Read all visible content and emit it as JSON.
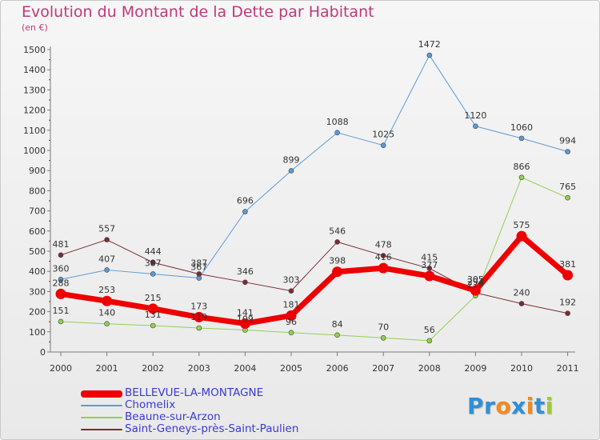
{
  "header": {
    "title": "Evolution du Montant de la Dette par Habitant",
    "subtitle": "(en €)"
  },
  "logo": {
    "letters": [
      "P",
      "r",
      "o",
      "x",
      "i",
      "t",
      "i"
    ],
    "colors": [
      "#2f8fd8",
      "#2f8fd8",
      "#f08a1c",
      "#2f8fd8",
      "#f08a1c",
      "#2f8fd8",
      "#9acd32"
    ]
  },
  "chart_data": {
    "type": "line",
    "title": "Evolution du Montant de la Dette par Habitant",
    "subtitle": "(en €)",
    "categories": [
      "2000",
      "2001",
      "2002",
      "2003",
      "2004",
      "2005",
      "2006",
      "2007",
      "2008",
      "2009",
      "2010",
      "2011"
    ],
    "ylim": [
      0,
      1500
    ],
    "yticks": [
      0,
      100,
      200,
      300,
      400,
      500,
      600,
      700,
      800,
      900,
      1000,
      1100,
      1200,
      1300,
      1400,
      1500
    ],
    "grid": false,
    "legend_position": "bottom-left",
    "series": [
      {
        "name": "BELLEVUE-LA-MONTAGNE",
        "color": "#ee0000",
        "width": 7,
        "values": [
          288,
          253,
          215,
          173,
          141,
          181,
          398,
          416,
          377,
          305,
          575,
          381
        ]
      },
      {
        "name": "Chomelix",
        "color": "#5b9bd5",
        "width": 1,
        "values": [
          360,
          407,
          387,
          367,
          696,
          899,
          1088,
          1025,
          1472,
          1120,
          1060,
          994
        ]
      },
      {
        "name": "Beaune-sur-Arzon",
        "color": "#92d050",
        "width": 1,
        "values": [
          151,
          140,
          131,
          119,
          109,
          96,
          84,
          70,
          56,
          279,
          866,
          765
        ]
      },
      {
        "name": "Saint-Geneys-près-Saint-Paulien",
        "color": "#7b2c35",
        "width": 1,
        "values": [
          481,
          557,
          444,
          387,
          346,
          303,
          546,
          478,
          415,
          294,
          240,
          192
        ]
      }
    ]
  }
}
